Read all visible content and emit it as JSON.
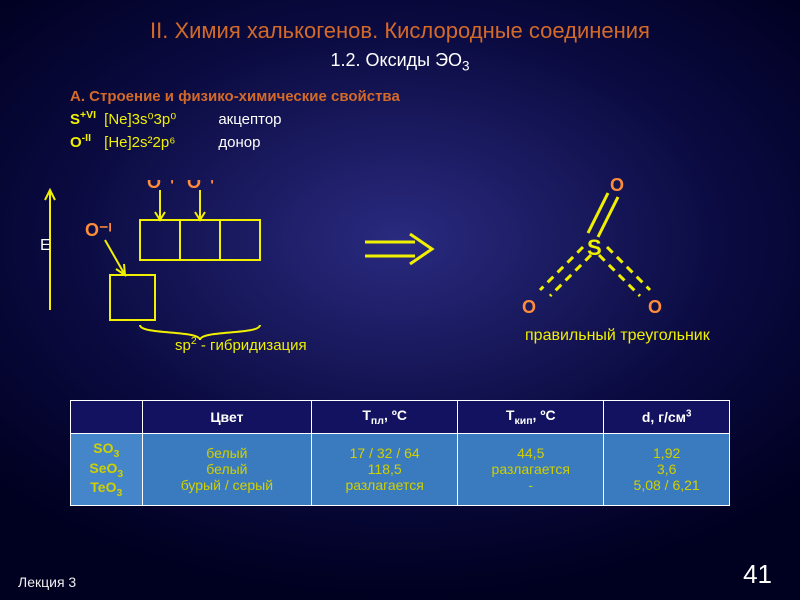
{
  "colors": {
    "title": "#d46a28",
    "yellow": "#f0f000",
    "orange": "#ff8c3a",
    "headerBlue": "#3030a0",
    "headerBlueDark": "#121260",
    "white": "#ffffff",
    "cellBlue": "#4585c9"
  },
  "title": "II. Химия халькогенов. Кислородные соединения",
  "subtitle_plain": "1.2. Оксиды ЭО",
  "subtitle_sub": "3",
  "sectionA": "А. Строение и физико-химические свойства",
  "config": [
    {
      "sym": "S",
      "charge": "+VI",
      "conf": "[Ne]3s⁰3p⁰",
      "role": "акцептор"
    },
    {
      "sym": "O",
      "charge": "-II",
      "conf": "[He]2s²2p⁶",
      "role": "донор"
    }
  ],
  "orbital": {
    "E_label": "E",
    "O_labels": [
      "O⁻ᴵ",
      "O⁻ᴵ",
      "O⁻ᴵ"
    ],
    "hybrid_label_pre": "sp",
    "hybrid_label_sup": "2",
    "hybrid_label_post": "  - гибридизация",
    "stroke": "#f0f000",
    "stroke_width": 2
  },
  "triangle": {
    "center_atom": "S",
    "outer_atom": "O",
    "caption": "правильный треугольник",
    "stroke": "#f0f000",
    "dash": "0"
  },
  "arrow": {
    "stroke": "#f0f000",
    "width": 3
  },
  "table": {
    "headers": [
      "",
      "Цвет",
      "Tпл, ºC",
      "Tкип, ºC",
      "d, г/см³"
    ],
    "headers_html": [
      "",
      "Цвет",
      "T<sub>пл</sub>, ºC",
      "T<sub>кип</sub>, ºC",
      "d, г/см<sup>3</sup>"
    ],
    "row1_formulas_html": [
      "SO<sub>3</sub>",
      "SeO<sub>3</sub>",
      "TeO<sub>3</sub>"
    ],
    "cells": {
      "color": [
        "белый",
        "белый",
        "бурый / серый"
      ],
      "tmelt": [
        "17 / 32 / 64",
        "118,5",
        "разлагается"
      ],
      "tboil": [
        "44,5",
        "разлагается",
        "-"
      ],
      "dens": [
        "1,92",
        "3,6",
        "5,08 / 6,21"
      ]
    },
    "header_bg": "#121260",
    "header_fg": "#ffffff",
    "formula_bg": "#4585c9",
    "cell_bg": "#3a7abf",
    "cell_fg_yellow": "#d0d000",
    "border": "#ffffff"
  },
  "lecture": "Лекция 3",
  "page": "41"
}
